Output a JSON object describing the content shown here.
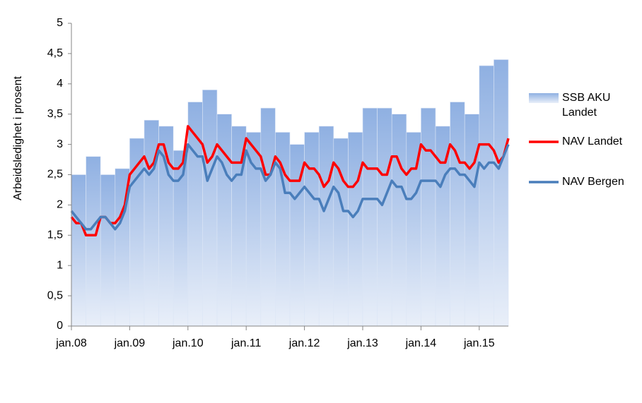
{
  "chart_data": {
    "type": "bar-line",
    "y_label": "Arbeidsledighet i prosent",
    "categories": [
      "jan.08",
      null,
      null,
      null,
      null,
      null,
      null,
      null,
      null,
      null,
      null,
      null,
      "jan.09",
      null,
      null,
      null,
      null,
      null,
      null,
      null,
      null,
      null,
      null,
      null,
      "jan.10",
      null,
      null,
      null,
      null,
      null,
      null,
      null,
      null,
      null,
      null,
      null,
      "jan.11",
      null,
      null,
      null,
      null,
      null,
      null,
      null,
      null,
      null,
      null,
      null,
      "jan.12",
      null,
      null,
      null,
      null,
      null,
      null,
      null,
      null,
      null,
      null,
      null,
      "jan.13",
      null,
      null,
      null,
      null,
      null,
      null,
      null,
      null,
      null,
      null,
      null,
      "jan.14",
      null,
      null,
      null,
      null,
      null,
      null,
      null,
      null,
      null,
      null,
      null,
      "jan.15",
      null,
      null,
      null,
      null,
      null,
      null
    ],
    "ylim": [
      0,
      5
    ],
    "yticks": [
      0,
      {
        "value": 0.5,
        "label": "0,5"
      },
      1,
      {
        "value": 1.5,
        "label": "1,5"
      },
      2,
      {
        "value": 2.5,
        "label": "2,5"
      },
      3,
      {
        "value": 3.5,
        "label": "3,5"
      },
      4,
      {
        "value": 4.5,
        "label": "4,5"
      },
      5
    ],
    "series": [
      {
        "name": "SSB AKU Landet",
        "kind": "bar",
        "color": "#9db7e3",
        "values": [
          2.5,
          null,
          null,
          2.8,
          null,
          null,
          2.5,
          null,
          null,
          2.6,
          null,
          null,
          3.1,
          null,
          null,
          3.4,
          null,
          null,
          3.3,
          null,
          null,
          2.9,
          null,
          null,
          3.7,
          null,
          null,
          3.9,
          null,
          null,
          3.5,
          null,
          null,
          3.3,
          null,
          null,
          3.2,
          null,
          null,
          3.6,
          null,
          null,
          3.2,
          null,
          null,
          3.0,
          null,
          null,
          3.2,
          null,
          null,
          3.3,
          null,
          null,
          3.1,
          null,
          null,
          3.2,
          null,
          null,
          3.6,
          null,
          null,
          3.6,
          null,
          null,
          3.5,
          null,
          null,
          3.2,
          null,
          null,
          3.6,
          null,
          null,
          3.3,
          null,
          null,
          3.7,
          null,
          null,
          3.5,
          null,
          null,
          4.3,
          null,
          null,
          4.4,
          null,
          null,
          null
        ]
      },
      {
        "name": "NAV Landet",
        "kind": "line",
        "color": "#ff0000",
        "values": [
          1.8,
          1.7,
          1.7,
          1.5,
          1.5,
          1.5,
          1.8,
          1.8,
          1.7,
          1.7,
          1.8,
          2.0,
          2.5,
          2.6,
          2.7,
          2.8,
          2.6,
          2.7,
          3.0,
          3.0,
          2.7,
          2.6,
          2.6,
          2.7,
          3.3,
          3.2,
          3.1,
          3.0,
          2.7,
          2.8,
          3.0,
          2.9,
          2.8,
          2.7,
          2.7,
          2.7,
          3.1,
          3.0,
          2.9,
          2.8,
          2.5,
          2.5,
          2.8,
          2.7,
          2.5,
          2.4,
          2.4,
          2.4,
          2.7,
          2.6,
          2.6,
          2.5,
          2.3,
          2.4,
          2.7,
          2.6,
          2.4,
          2.3,
          2.3,
          2.4,
          2.7,
          2.6,
          2.6,
          2.6,
          2.5,
          2.5,
          2.8,
          2.8,
          2.6,
          2.5,
          2.6,
          2.6,
          3.0,
          2.9,
          2.9,
          2.8,
          2.7,
          2.7,
          3.0,
          2.9,
          2.7,
          2.7,
          2.6,
          2.7,
          3.0,
          3.0,
          3.0,
          2.9,
          2.7,
          2.8,
          3.1
        ]
      },
      {
        "name": "NAV Bergen",
        "kind": "line",
        "color": "#4a7ebb",
        "values": [
          1.9,
          1.8,
          1.7,
          1.6,
          1.6,
          1.7,
          1.8,
          1.8,
          1.7,
          1.6,
          1.7,
          1.9,
          2.3,
          2.4,
          2.5,
          2.6,
          2.5,
          2.6,
          2.9,
          2.8,
          2.5,
          2.4,
          2.4,
          2.5,
          3.0,
          2.9,
          2.8,
          2.8,
          2.4,
          2.6,
          2.8,
          2.7,
          2.5,
          2.4,
          2.5,
          2.5,
          2.9,
          2.7,
          2.6,
          2.6,
          2.4,
          2.5,
          2.7,
          2.6,
          2.2,
          2.2,
          2.1,
          2.2,
          2.3,
          2.2,
          2.1,
          2.1,
          1.9,
          2.1,
          2.3,
          2.2,
          1.9,
          1.9,
          1.8,
          1.9,
          2.1,
          2.1,
          2.1,
          2.1,
          2.0,
          2.2,
          2.4,
          2.3,
          2.3,
          2.1,
          2.1,
          2.2,
          2.4,
          2.4,
          2.4,
          2.4,
          2.3,
          2.5,
          2.6,
          2.6,
          2.5,
          2.5,
          2.4,
          2.3,
          2.7,
          2.6,
          2.7,
          2.7,
          2.6,
          2.8,
          3.0
        ]
      }
    ]
  }
}
